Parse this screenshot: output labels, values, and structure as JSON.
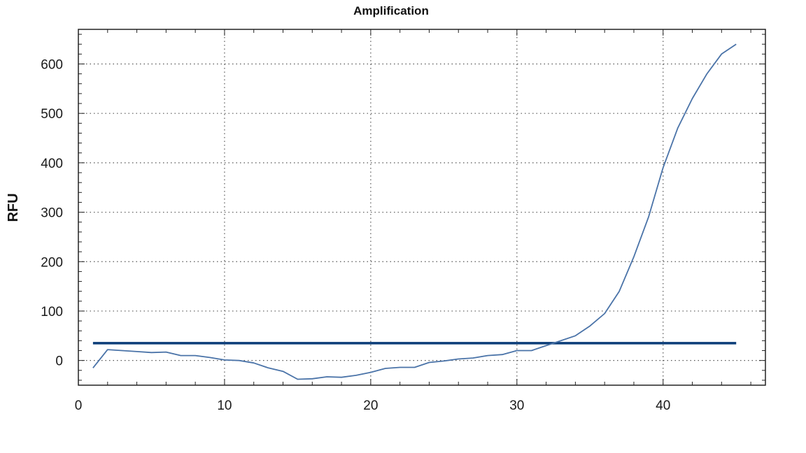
{
  "chart_data": {
    "type": "line",
    "title": "Amplification",
    "xlabel": "",
    "ylabel": "RFU",
    "xlim": [
      0,
      47
    ],
    "ylim": [
      -50,
      670
    ],
    "x_ticks": [
      0,
      10,
      20,
      30,
      40
    ],
    "y_ticks": [
      0,
      100,
      200,
      300,
      400,
      500,
      600
    ],
    "x_tick_labels": [
      "0",
      "10",
      "20",
      "30",
      "40"
    ],
    "y_tick_labels": [
      "0",
      "100",
      "200",
      "300",
      "400",
      "500",
      "600"
    ],
    "grid": true,
    "threshold": 35,
    "colors": {
      "curve": "#4a73a8",
      "threshold": "#0b3d78",
      "grid": "#555555",
      "axis": "#222222"
    },
    "series": [
      {
        "x": [
          1,
          2,
          3,
          4,
          5,
          6,
          7,
          8,
          9,
          10,
          11,
          12,
          13,
          14,
          15,
          16,
          17,
          18,
          19,
          20,
          21,
          22,
          23,
          24,
          25,
          26,
          27,
          28,
          29,
          30,
          31,
          32,
          33,
          34,
          35,
          36,
          37,
          38,
          39,
          40,
          41,
          42,
          43,
          44,
          45
        ],
        "values": [
          -15,
          22,
          20,
          18,
          16,
          17,
          10,
          10,
          6,
          1,
          0,
          -5,
          -15,
          -22,
          -38,
          -37,
          -33,
          -34,
          -30,
          -24,
          -16,
          -14,
          -14,
          -4,
          -1,
          3,
          5,
          10,
          12,
          20,
          20,
          30,
          40,
          50,
          70,
          95,
          140,
          210,
          290,
          390,
          470,
          530,
          580,
          620,
          640
        ]
      }
    ]
  }
}
